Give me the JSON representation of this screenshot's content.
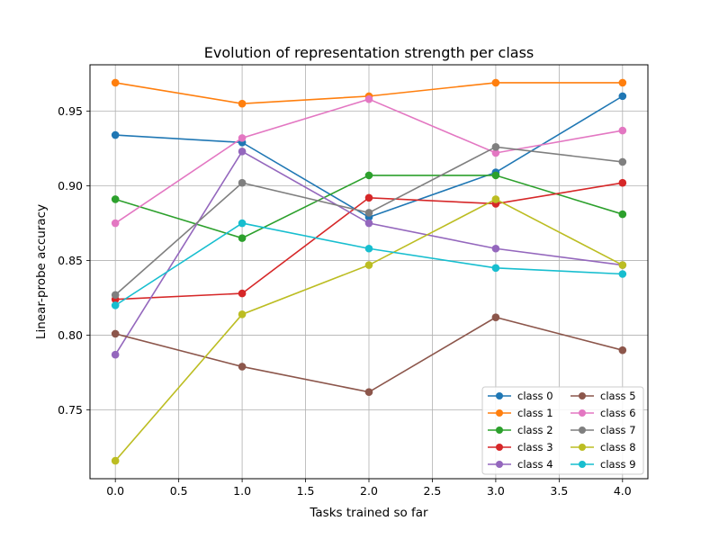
{
  "chart_data": {
    "type": "line",
    "title": "Evolution of representation strength per class",
    "xlabel": "Tasks trained so far",
    "ylabel": "Linear-probe accuracy",
    "x": [
      0,
      1,
      2,
      3,
      4
    ],
    "xlim": [
      -0.2,
      4.2
    ],
    "ylim": [
      0.704,
      0.981
    ],
    "xticks": [
      "0.0",
      "0.5",
      "1.0",
      "1.5",
      "2.0",
      "2.5",
      "3.0",
      "3.5",
      "4.0"
    ],
    "xtick_values": [
      0,
      0.5,
      1,
      1.5,
      2,
      2.5,
      3,
      3.5,
      4
    ],
    "yticks": [
      "0.75",
      "0.80",
      "0.85",
      "0.90",
      "0.95"
    ],
    "ytick_values": [
      0.75,
      0.8,
      0.85,
      0.9,
      0.95
    ],
    "grid": true,
    "legend_position": "lower-right",
    "legend_columns": 2,
    "series": [
      {
        "name": "class 0",
        "color": "#1f77b4",
        "values": [
          0.934,
          0.929,
          0.879,
          0.909,
          0.96
        ]
      },
      {
        "name": "class 1",
        "color": "#ff7f0e",
        "values": [
          0.969,
          0.955,
          0.96,
          0.969,
          0.969
        ]
      },
      {
        "name": "class 2",
        "color": "#2ca02c",
        "values": [
          0.891,
          0.865,
          0.907,
          0.907,
          0.881
        ]
      },
      {
        "name": "class 3",
        "color": "#d62728",
        "values": [
          0.824,
          0.828,
          0.892,
          0.888,
          0.902
        ]
      },
      {
        "name": "class 4",
        "color": "#9467bd",
        "values": [
          0.787,
          0.923,
          0.875,
          0.858,
          0.847
        ]
      },
      {
        "name": "class 5",
        "color": "#8c564b",
        "values": [
          0.801,
          0.779,
          0.762,
          0.812,
          0.79
        ]
      },
      {
        "name": "class 6",
        "color": "#e377c2",
        "values": [
          0.875,
          0.932,
          0.958,
          0.922,
          0.937
        ]
      },
      {
        "name": "class 7",
        "color": "#7f7f7f",
        "values": [
          0.827,
          0.902,
          0.882,
          0.926,
          0.916
        ]
      },
      {
        "name": "class 8",
        "color": "#bcbd22",
        "values": [
          0.716,
          0.814,
          0.847,
          0.891,
          0.847
        ]
      },
      {
        "name": "class 9",
        "color": "#17becf",
        "values": [
          0.82,
          0.875,
          0.858,
          0.845,
          0.841
        ]
      }
    ]
  }
}
